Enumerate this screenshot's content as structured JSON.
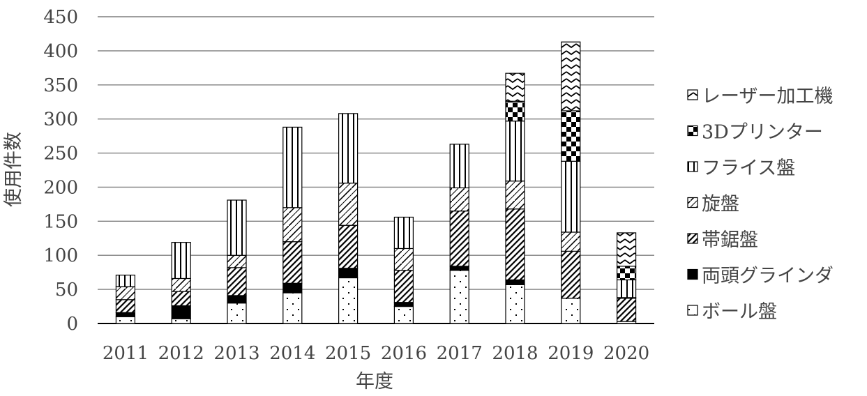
{
  "chart_data": {
    "type": "bar",
    "stacked": true,
    "title": "",
    "xlabel": "年度",
    "ylabel": "使用件数",
    "ylim": [
      0,
      450
    ],
    "yticks": [
      0,
      50,
      100,
      150,
      200,
      250,
      300,
      350,
      400,
      450
    ],
    "grid": true,
    "legend_position": "right",
    "categories": [
      "2011",
      "2012",
      "2013",
      "2014",
      "2015",
      "2016",
      "2017",
      "2018",
      "2019",
      "2020"
    ],
    "series": [
      {
        "name": "ボール盤",
        "values": [
          10,
          7,
          30,
          45,
          67,
          25,
          78,
          57,
          37,
          3
        ],
        "pattern": "dots"
      },
      {
        "name": "両頭グラインダ",
        "values": [
          6,
          19,
          11,
          14,
          14,
          6,
          6,
          7,
          0,
          0
        ],
        "pattern": "solid"
      },
      {
        "name": "帯鋸盤",
        "values": [
          19,
          21,
          41,
          61,
          63,
          47,
          81,
          104,
          69,
          34
        ],
        "pattern": "hatch-dense"
      },
      {
        "name": "旋盤",
        "values": [
          19,
          19,
          18,
          50,
          62,
          32,
          34,
          41,
          28,
          1
        ],
        "pattern": "zigzag"
      },
      {
        "name": "フライス盤",
        "values": [
          17,
          53,
          81,
          118,
          102,
          46,
          64,
          88,
          104,
          26
        ],
        "pattern": "vlines"
      },
      {
        "name": "3Dプリンター",
        "values": [
          0,
          0,
          0,
          0,
          0,
          0,
          0,
          29,
          74,
          20
        ],
        "pattern": "checker"
      },
      {
        "name": "レーザー加工機",
        "values": [
          0,
          0,
          0,
          0,
          0,
          0,
          0,
          41,
          101,
          49
        ],
        "pattern": "chevron"
      }
    ],
    "colors": {
      "bar_outline": "#000000",
      "fill": "#000000",
      "grid": "#7f7f7f",
      "axis": "#000000",
      "text": "#444444"
    }
  }
}
